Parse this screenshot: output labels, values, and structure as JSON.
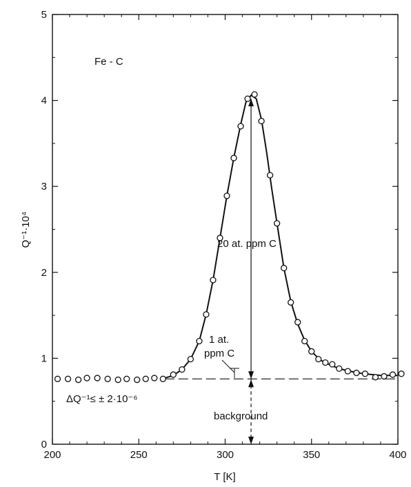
{
  "chart_data": {
    "type": "scatter",
    "xlabel": "T [K]",
    "ylabel": "Q⁻¹·10⁴",
    "xlim": [
      200,
      400
    ],
    "ylim": [
      0,
      5
    ],
    "x_ticks": [
      200,
      250,
      300,
      350,
      400
    ],
    "y_ticks": [
      0,
      1,
      2,
      3,
      4,
      5
    ],
    "x_tick_labels": [
      "200",
      "250",
      "300",
      "350",
      "400"
    ],
    "y_tick_labels": [
      "0",
      "1",
      "2",
      "3",
      "4",
      "5"
    ],
    "grid": false,
    "series": [
      {
        "marker": "open-circle",
        "points": [
          [
            203,
            0.76
          ],
          [
            209,
            0.76
          ],
          [
            215,
            0.75
          ],
          [
            220,
            0.77
          ],
          [
            226,
            0.77
          ],
          [
            232,
            0.76
          ],
          [
            238,
            0.75
          ],
          [
            243,
            0.76
          ],
          [
            249,
            0.75
          ],
          [
            254,
            0.76
          ],
          [
            259,
            0.77
          ],
          [
            264,
            0.76
          ],
          [
            270,
            0.81
          ],
          [
            275,
            0.87
          ],
          [
            280,
            0.99
          ],
          [
            285,
            1.2
          ],
          [
            289,
            1.51
          ],
          [
            293,
            1.91
          ],
          [
            297,
            2.4
          ],
          [
            301,
            2.89
          ],
          [
            305,
            3.33
          ],
          [
            309,
            3.7
          ],
          [
            313,
            4.02
          ],
          [
            317,
            4.07
          ],
          [
            321,
            3.76
          ],
          [
            326,
            3.13
          ],
          [
            330,
            2.57
          ],
          [
            334,
            2.05
          ],
          [
            338,
            1.65
          ],
          [
            342,
            1.42
          ],
          [
            346,
            1.2
          ],
          [
            350,
            1.08
          ],
          [
            354,
            0.99
          ],
          [
            358,
            0.95
          ],
          [
            362,
            0.93
          ],
          [
            366,
            0.88
          ],
          [
            371,
            0.85
          ],
          [
            376,
            0.83
          ],
          [
            381,
            0.82
          ],
          [
            387,
            0.78
          ],
          [
            392,
            0.79
          ],
          [
            397,
            0.81
          ],
          [
            402,
            0.82
          ]
        ]
      }
    ],
    "fit_curve": [
      [
        265,
        0.77
      ],
      [
        270,
        0.8
      ],
      [
        275,
        0.87
      ],
      [
        280,
        0.99
      ],
      [
        285,
        1.2
      ],
      [
        289,
        1.51
      ],
      [
        293,
        1.91
      ],
      [
        297,
        2.4
      ],
      [
        301,
        2.89
      ],
      [
        305,
        3.33
      ],
      [
        309,
        3.72
      ],
      [
        312,
        3.98
      ],
      [
        315,
        4.06
      ],
      [
        318,
        4.02
      ],
      [
        321,
        3.78
      ],
      [
        324,
        3.4
      ],
      [
        327,
        2.97
      ],
      [
        330,
        2.57
      ],
      [
        334,
        2.05
      ],
      [
        338,
        1.66
      ],
      [
        342,
        1.4
      ],
      [
        346,
        1.21
      ],
      [
        350,
        1.08
      ],
      [
        355,
        0.98
      ],
      [
        360,
        0.93
      ],
      [
        366,
        0.88
      ],
      [
        372,
        0.85
      ],
      [
        380,
        0.82
      ],
      [
        390,
        0.8
      ],
      [
        400,
        0.8
      ]
    ],
    "background_line": {
      "x_start": 265,
      "x_end": 400,
      "y": 0.76
    },
    "peak_marker_x": 315,
    "annotations": {
      "alloy_label": "Fe - C",
      "peak_label": "20 at.  ppm C",
      "one_ppm_line1": "1 at.",
      "one_ppm_line2": "ppm C",
      "background_label": "background",
      "error_label": "ΔQ⁻¹≤ ± 2·10⁻⁶"
    }
  }
}
